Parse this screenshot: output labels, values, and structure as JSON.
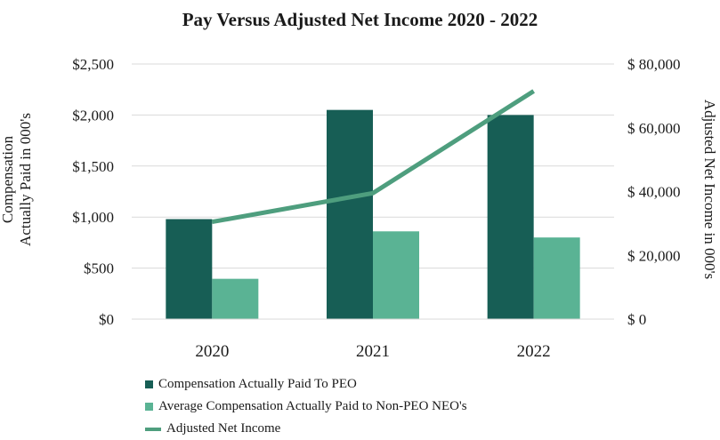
{
  "chart_data": {
    "type": "bar",
    "title": "Pay Versus Adjusted Net Income 2020 - 2022",
    "categories": [
      "2020",
      "2021",
      "2022"
    ],
    "series": [
      {
        "name": "Compensation Actually Paid To PEO",
        "kind": "bar",
        "axis": "left",
        "color": "#175e55",
        "values": [
          980,
          2050,
          2000
        ]
      },
      {
        "name": "Average Compensation Actually Paid to Non-PEO NEO's",
        "kind": "bar",
        "axis": "left",
        "color": "#5ab394",
        "values": [
          395,
          860,
          800
        ]
      },
      {
        "name": "Adjusted Net Income",
        "kind": "line",
        "axis": "right",
        "color": "#4e9e7e",
        "values": [
          30500,
          39500,
          71500
        ]
      }
    ],
    "ylabel": "Compensation Actually Paid in 000's",
    "ylabel_lines": [
      "Compensation",
      "Actually Paid in 000's"
    ],
    "y2label": "Adjusted Net Income in 000's",
    "ylim": [
      0,
      2500
    ],
    "y2lim": [
      0,
      80000
    ],
    "y_ticks": [
      "$0",
      "$500",
      "$1,000",
      "$1,500",
      "$2,000",
      "$2,500"
    ],
    "y2_ticks": [
      "$ 0",
      "$ 20,000",
      "$ 40,000",
      "$ 60,000",
      "$ 80,000"
    ],
    "grid": true,
    "legend_position": "bottom"
  }
}
